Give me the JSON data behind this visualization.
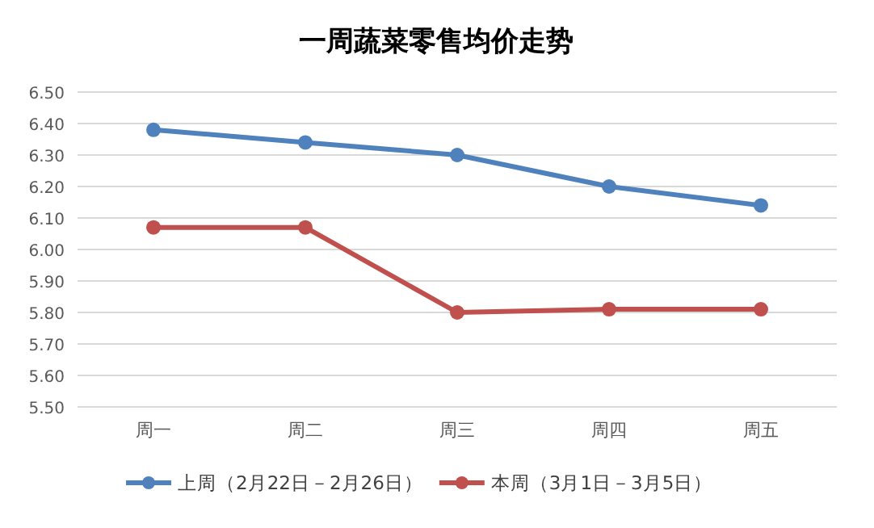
{
  "chart_data": {
    "type": "line",
    "title": "一周蔬菜零售均价走势",
    "categories": [
      "周一",
      "周二",
      "周三",
      "周四",
      "周五"
    ],
    "series": [
      {
        "name": "上周（2月22日－2月26日）",
        "color": "#4f81bd",
        "values": [
          6.38,
          6.34,
          6.3,
          6.2,
          6.14
        ]
      },
      {
        "name": "本周（3月1日－3月5日）",
        "color": "#c0504d",
        "values": [
          6.07,
          6.07,
          5.8,
          5.81,
          5.81
        ]
      }
    ],
    "ylim": [
      5.5,
      6.5
    ],
    "yticks": [
      {
        "value": 5.5,
        "label": "5.50"
      },
      {
        "value": 5.6,
        "label": "5.60"
      },
      {
        "value": 5.7,
        "label": "5.70"
      },
      {
        "value": 5.8,
        "label": "5.80"
      },
      {
        "value": 5.9,
        "label": "5.90"
      },
      {
        "value": 6.0,
        "label": "6.00"
      },
      {
        "value": 6.1,
        "label": "6.10"
      },
      {
        "value": 6.2,
        "label": "6.20"
      },
      {
        "value": 6.3,
        "label": "6.30"
      },
      {
        "value": 6.4,
        "label": "6.40"
      },
      {
        "value": 6.5,
        "label": "6.50"
      }
    ],
    "grid": "y",
    "legend": "bottom",
    "marker": "circle",
    "line_style": "solid"
  }
}
